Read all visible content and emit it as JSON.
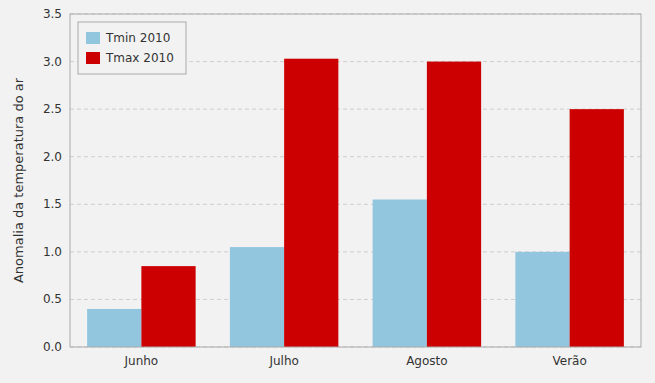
{
  "chart_data": {
    "type": "bar",
    "y_label": "Anomalia da temperatura do ar",
    "categories": [
      "Junho",
      "Julho",
      "Agosto",
      "Verão"
    ],
    "series": [
      {
        "name": "Tmin 2010",
        "color": "#92C5DE",
        "values": [
          0.4,
          1.05,
          1.55,
          1.0
        ]
      },
      {
        "name": "Tmax 2010",
        "color": "#CC0000",
        "values": [
          0.85,
          3.03,
          3.0,
          2.5
        ]
      }
    ],
    "ylim": [
      0,
      3.5
    ],
    "yticks": [
      {
        "value": 0.0,
        "label": "0.0"
      },
      0.5,
      {
        "value": 1.0,
        "label": "1.0"
      },
      1.5,
      {
        "value": 2.0,
        "label": "2.0"
      },
      2.5,
      {
        "value": 3.0,
        "label": "3.0"
      },
      3.5
    ],
    "grid": true,
    "legend": "upper left"
  }
}
